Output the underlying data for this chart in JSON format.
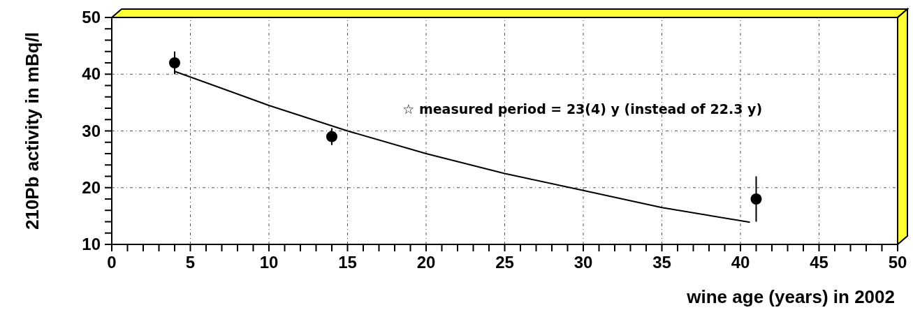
{
  "chart_data": {
    "type": "scatter",
    "xlabel": "wine age (years) in 2002",
    "ylabel": "210Pb activity in mBq/l",
    "annotations": [
      "☆   measured period = 23(4) y (instead of 22.3 y)"
    ],
    "xlim": [
      0,
      50
    ],
    "ylim": [
      10,
      50
    ],
    "xticks": [
      0,
      {
        "value": 1,
        "label": null
      },
      {
        "value": 2,
        "label": null
      },
      {
        "value": 3,
        "label": null
      },
      {
        "value": 4,
        "label": null
      },
      5,
      {
        "value": 6,
        "label": null
      },
      {
        "value": 7,
        "label": null
      },
      {
        "value": 8,
        "label": null
      },
      {
        "value": 9,
        "label": null
      },
      10,
      {
        "value": 11,
        "label": null
      },
      {
        "value": 12,
        "label": null
      },
      {
        "value": 13,
        "label": null
      },
      {
        "value": 14,
        "label": null
      },
      15,
      {
        "value": 16,
        "label": null
      },
      {
        "value": 17,
        "label": null
      },
      {
        "value": 18,
        "label": null
      },
      {
        "value": 19,
        "label": null
      },
      20,
      {
        "value": 21,
        "label": null
      },
      {
        "value": 22,
        "label": null
      },
      {
        "value": 23,
        "label": null
      },
      {
        "value": 24,
        "label": null
      },
      25,
      {
        "value": 26,
        "label": null
      },
      {
        "value": 27,
        "label": null
      },
      {
        "value": 28,
        "label": null
      },
      {
        "value": 29,
        "label": null
      },
      30,
      {
        "value": 31,
        "label": null
      },
      {
        "value": 32,
        "label": null
      },
      {
        "value": 33,
        "label": null
      },
      {
        "value": 34,
        "label": null
      },
      35,
      {
        "value": 36,
        "label": null
      },
      {
        "value": 37,
        "label": null
      },
      {
        "value": 38,
        "label": null
      },
      {
        "value": 39,
        "label": null
      },
      40,
      {
        "value": 41,
        "label": null
      },
      {
        "value": 42,
        "label": null
      },
      {
        "value": 43,
        "label": null
      },
      {
        "value": 44,
        "label": null
      },
      45,
      {
        "value": 46,
        "label": null
      },
      {
        "value": 47,
        "label": null
      },
      {
        "value": 48,
        "label": null
      },
      {
        "value": 49,
        "label": null
      },
      50
    ],
    "yticks": [
      10,
      {
        "value": 12,
        "label": null
      },
      {
        "value": 14,
        "label": null
      },
      {
        "value": 16,
        "label": null
      },
      {
        "value": 18,
        "label": null
      },
      20,
      {
        "value": 22,
        "label": null
      },
      {
        "value": 24,
        "label": null
      },
      {
        "value": 26,
        "label": null
      },
      {
        "value": 28,
        "label": null
      },
      30,
      {
        "value": 32,
        "label": null
      },
      {
        "value": 34,
        "label": null
      },
      {
        "value": 36,
        "label": null
      },
      {
        "value": 38,
        "label": null
      },
      40,
      {
        "value": 42,
        "label": null
      },
      {
        "value": 44,
        "label": null
      },
      {
        "value": 46,
        "label": null
      },
      {
        "value": 48,
        "label": null
      },
      50
    ],
    "grid": true,
    "marker": "circle",
    "series": [
      {
        "type": "scatter",
        "color": "#000000",
        "x": [
          4,
          14,
          41
        ],
        "values": [
          42,
          29,
          18
        ],
        "errors": [
          2,
          1.5,
          4
        ]
      },
      {
        "type": "line",
        "color": "#000000",
        "marker": "none",
        "x": [
          4,
          7,
          10,
          15,
          20,
          25,
          30,
          35,
          40.6
        ],
        "values": [
          40.5,
          37.5,
          34.5,
          30,
          26,
          22.5,
          19.5,
          16.5,
          13.9
        ]
      }
    ]
  }
}
